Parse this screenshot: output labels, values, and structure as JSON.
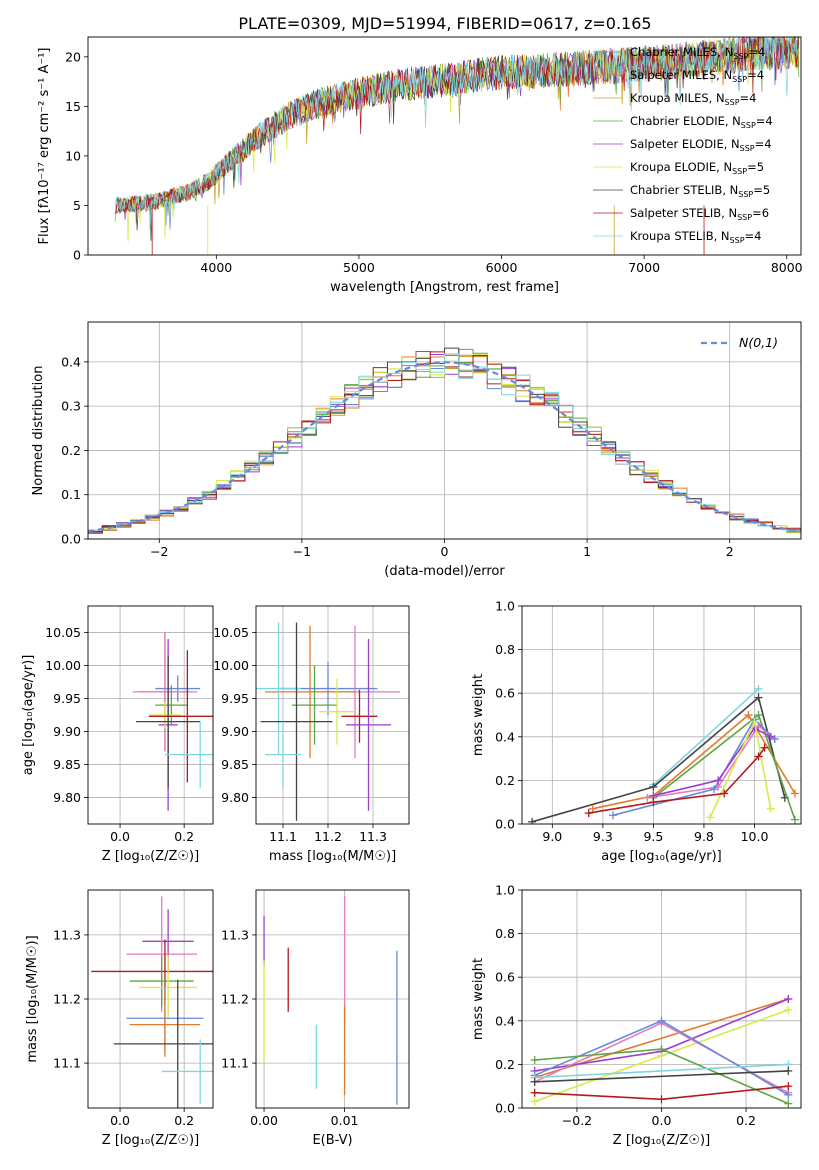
{
  "figure": {
    "title": "PLATE=0309, MJD=51994, FIBERID=0617, z=0.165"
  },
  "colors": {
    "c1": "#6688dd",
    "c2": "#e07b2a",
    "c3": "#c9a227",
    "c4": "#5ca646",
    "c5": "#9b3fd1",
    "c6": "#d6ea4a",
    "c7": "#444444",
    "c8": "#b31b1b",
    "c9": "#7fd6e0",
    "c10": "#e37bbd"
  },
  "chart_data": [
    {
      "id": "spectrum",
      "type": "line",
      "xlabel": "wavelength [Angstrom, rest frame]",
      "ylabel": "Flux [fλ10⁻¹⁷ erg cm⁻² s⁻¹ A⁻¹]",
      "xlim": [
        3100,
        8100
      ],
      "ylim": [
        0,
        22
      ],
      "xticks": [
        4000,
        5000,
        6000,
        7000,
        8000
      ],
      "yticks": [
        0,
        5,
        10,
        15,
        20
      ],
      "grid": false,
      "legend_position": "top-right",
      "x": [
        3300,
        3450,
        3600,
        3800,
        3950,
        4100,
        4300,
        4500,
        4700,
        4900,
        5100,
        5300,
        5500,
        5700,
        5900,
        6100,
        6300,
        6500,
        6700,
        6900,
        7100,
        7300,
        7500,
        7700,
        7900
      ],
      "series": [
        {
          "name": "Chabrier MILES, N_SSP=4",
          "color_key": "c1",
          "values": [
            5,
            5.2,
            5.5,
            6.3,
            7.5,
            9.5,
            12.0,
            14.0,
            15.2,
            16.0,
            16.6,
            17.2,
            17.5,
            17.8,
            18.3,
            18.5,
            18.6,
            18.8,
            19.0,
            19.2,
            19.4,
            19.7,
            20.0,
            20.3,
            20.6
          ]
        },
        {
          "name": "Salpeter MILES, N_SSP=4",
          "color_key": "c2",
          "values": [
            5,
            5.2,
            5.5,
            6.3,
            7.5,
            9.5,
            12.0,
            14.0,
            15.2,
            16.0,
            16.6,
            17.2,
            17.5,
            17.8,
            18.3,
            18.5,
            18.6,
            18.8,
            19.0,
            19.2,
            19.4,
            19.7,
            20.0,
            20.3,
            20.6
          ]
        },
        {
          "name": "Kroupa MILES, N_SSP=4",
          "color_key": "c3",
          "values": [
            5,
            5.2,
            5.5,
            6.3,
            7.5,
            9.5,
            12.0,
            14.0,
            15.2,
            16.0,
            16.6,
            17.2,
            17.5,
            17.8,
            18.3,
            18.5,
            18.6,
            18.8,
            19.0,
            19.2,
            19.4,
            19.7,
            20.0,
            20.3,
            20.6
          ]
        },
        {
          "name": "Chabrier ELODIE, N_SSP=4",
          "color_key": "c4",
          "values": [
            5,
            5.2,
            5.5,
            6.3,
            7.5,
            9.5,
            12.0,
            14.0,
            15.2,
            16.0,
            16.6,
            17.2,
            17.5,
            17.8,
            18.3,
            18.5,
            18.6,
            18.8,
            19.0,
            19.2,
            19.4,
            19.7,
            20.0,
            20.3,
            20.6
          ]
        },
        {
          "name": "Salpeter ELODIE, N_SSP=4",
          "color_key": "c5",
          "values": [
            5,
            5.2,
            5.5,
            6.3,
            7.5,
            9.5,
            12.0,
            14.0,
            15.2,
            16.0,
            16.6,
            17.2,
            17.5,
            17.8,
            18.3,
            18.5,
            18.6,
            18.8,
            19.0,
            19.2,
            19.4,
            19.7,
            20.0,
            20.3,
            20.6
          ]
        },
        {
          "name": "Kroupa ELODIE, N_SSP=5",
          "color_key": "c6",
          "values": [
            5,
            5.2,
            5.5,
            6.3,
            7.5,
            9.5,
            12.0,
            14.0,
            15.2,
            16.0,
            16.6,
            17.2,
            17.5,
            17.8,
            18.3,
            18.5,
            18.6,
            18.8,
            19.0,
            19.2,
            19.4,
            19.7,
            20.0,
            20.3,
            20.6
          ]
        },
        {
          "name": "Chabrier STELIB, N_SSP=5",
          "color_key": "c7",
          "values": [
            5,
            5.2,
            5.5,
            6.3,
            7.5,
            9.5,
            12.0,
            14.0,
            15.2,
            16.0,
            16.6,
            17.2,
            17.5,
            17.8,
            18.3,
            18.5,
            18.6,
            18.8,
            19.0,
            19.2,
            19.4,
            19.7,
            20.0,
            20.3,
            20.6
          ]
        },
        {
          "name": "Salpeter STELIB, N_SSP=6",
          "color_key": "c8",
          "values": [
            5,
            5.2,
            5.5,
            6.3,
            7.5,
            9.5,
            12.0,
            14.0,
            15.2,
            16.0,
            16.6,
            17.2,
            17.5,
            17.8,
            18.3,
            18.5,
            18.6,
            18.8,
            19.0,
            19.2,
            19.4,
            19.7,
            20.0,
            20.3,
            20.6
          ]
        },
        {
          "name": "Kroupa STELIB, N_SSP=4",
          "color_key": "c9",
          "values": [
            5,
            5.2,
            5.5,
            6.3,
            7.5,
            9.5,
            12.0,
            14.0,
            15.2,
            16.0,
            16.6,
            17.2,
            17.5,
            17.8,
            18.3,
            18.5,
            18.6,
            18.8,
            19.0,
            19.2,
            19.4,
            19.7,
            20.0,
            20.3,
            20.6
          ]
        }
      ]
    },
    {
      "id": "residuals",
      "type": "bar",
      "xlabel": "(data-model)/error",
      "ylabel": "Normed distribution",
      "xlim": [
        -2.5,
        2.5
      ],
      "ylim": [
        0,
        0.49
      ],
      "xticks": [
        -2,
        -1,
        0,
        1,
        2
      ],
      "yticks": [
        0.0,
        0.1,
        0.2,
        0.3,
        0.4
      ],
      "grid": true,
      "legend_position": "top-right",
      "reference_curve": {
        "name": "N(0,1)",
        "color_key": "c1",
        "style": "dashed"
      },
      "bin_edges": [
        -2.5,
        -2.4,
        -2.3,
        -2.2,
        -2.1,
        -2.0,
        -1.9,
        -1.8,
        -1.7,
        -1.6,
        -1.5,
        -1.4,
        -1.3,
        -1.2,
        -1.1,
        -1.0,
        -0.9,
        -0.8,
        -0.7,
        -0.6,
        -0.5,
        -0.4,
        -0.3,
        -0.2,
        -0.1,
        0.0,
        0.1,
        0.2,
        0.3,
        0.4,
        0.5,
        0.6,
        0.7,
        0.8,
        0.9,
        1.0,
        1.1,
        1.2,
        1.3,
        1.4,
        1.5,
        1.6,
        1.7,
        1.8,
        1.9,
        2.0,
        2.1,
        2.2,
        2.3,
        2.4,
        2.5
      ],
      "series_color_keys": [
        "c1",
        "c2",
        "c3",
        "c4",
        "c5",
        "c6",
        "c7",
        "c8",
        "c9"
      ]
    },
    {
      "id": "age_vs_Z",
      "type": "scatter",
      "xlabel": "Z [log₁₀(Z/Z☉)]",
      "ylabel": "age  [log₁₀(age/yr)]",
      "xlim": [
        -0.1,
        0.29
      ],
      "ylim": [
        9.76,
        10.09
      ],
      "xticks": [
        0.0,
        0.2
      ],
      "yticks": [
        9.8,
        9.85,
        9.9,
        9.95,
        10.0,
        10.05
      ],
      "grid": true,
      "points": [
        {
          "color_key": "c1",
          "x": 0.18,
          "y": 9.965,
          "xerr": 0.07,
          "yerr": 0.02
        },
        {
          "color_key": "c2",
          "x": 0.14,
          "y": 9.96,
          "xerr": 0.08,
          "yerr": 0.09
        },
        {
          "color_key": "c10",
          "x": 0.14,
          "y": 9.96,
          "xerr": 0.1,
          "yerr": 0.09
        },
        {
          "color_key": "c4",
          "x": 0.16,
          "y": 9.94,
          "xerr": 0.05,
          "yerr": 0.03
        },
        {
          "color_key": "c5",
          "x": 0.15,
          "y": 9.91,
          "xerr": 0.03,
          "yerr": 0.13
        },
        {
          "color_key": "c6",
          "x": 0.14,
          "y": 9.925,
          "xerr": 0.05,
          "yerr": 0.02
        },
        {
          "color_key": "c8",
          "x": 0.21,
          "y": 9.923,
          "xerr": 0.12,
          "yerr": 0.1
        },
        {
          "color_key": "c7",
          "x": 0.15,
          "y": 9.915,
          "xerr": 0.1,
          "yerr": 0.1
        },
        {
          "color_key": "c9",
          "x": 0.25,
          "y": 9.865,
          "xerr": 0.11,
          "yerr": 0.05
        }
      ]
    },
    {
      "id": "age_vs_mass",
      "type": "scatter",
      "xlabel": "mass [log₁₀(M/M☉)]",
      "ylabel": "",
      "xlim": [
        11.04,
        11.38
      ],
      "ylim": [
        9.76,
        10.09
      ],
      "xticks": [
        11.1,
        11.2,
        11.3
      ],
      "yticks": [
        9.8,
        9.85,
        9.9,
        9.95,
        10.0,
        10.05
      ],
      "grid": true,
      "points": [
        {
          "color_key": "c1",
          "x": 11.2,
          "y": 9.965,
          "xerr": 0.11,
          "yerr": 0.04
        },
        {
          "color_key": "c10",
          "x": 11.26,
          "y": 9.96,
          "xerr": 0.1,
          "yerr": 0.1
        },
        {
          "color_key": "c2",
          "x": 11.16,
          "y": 9.96,
          "xerr": 0.1,
          "yerr": 0.1
        },
        {
          "color_key": "c9",
          "x": 11.09,
          "y": 9.965,
          "xerr": 0.05,
          "yerr": 0.1
        },
        {
          "color_key": "c4",
          "x": 11.17,
          "y": 9.94,
          "xerr": 0.05,
          "yerr": 0.06
        },
        {
          "color_key": "c6",
          "x": 11.22,
          "y": 9.93,
          "xerr": 0.04,
          "yerr": 0.05
        },
        {
          "color_key": "c8",
          "x": 11.27,
          "y": 9.923,
          "xerr": 0.04,
          "yerr": 0.04
        },
        {
          "color_key": "c5",
          "x": 11.29,
          "y": 9.91,
          "xerr": 0.05,
          "yerr": 0.13
        },
        {
          "color_key": "c7",
          "x": 11.13,
          "y": 9.915,
          "xerr": 0.08,
          "yerr": 0.15
        },
        {
          "color_key": "c9",
          "x": 11.1,
          "y": 9.865,
          "xerr": 0.04,
          "yerr": 0.05
        }
      ]
    },
    {
      "id": "massweight_vs_age",
      "type": "line",
      "xlabel": "age  [log₁₀(age/yr)]",
      "ylabel": "mass weight",
      "xlim": [
        8.85,
        10.23
      ],
      "ylim": [
        0,
        1.0
      ],
      "xticks": [
        9.0,
        9.25,
        9.5,
        9.75,
        10.0
      ],
      "yticks": [
        0.0,
        0.2,
        0.4,
        0.6,
        0.8,
        1.0
      ],
      "grid": true,
      "series": [
        {
          "color_key": "c9",
          "x": [
            9.5,
            10.02
          ],
          "values": [
            0.18,
            0.62
          ]
        },
        {
          "color_key": "c7",
          "x": [
            8.9,
            9.5,
            10.02,
            10.15
          ],
          "values": [
            0.01,
            0.17,
            0.58,
            0.12
          ]
        },
        {
          "color_key": "c2",
          "x": [
            9.2,
            9.5,
            9.97,
            10.2
          ],
          "values": [
            0.07,
            0.13,
            0.5,
            0.14
          ]
        },
        {
          "color_key": "c4",
          "x": [
            9.5,
            10.02,
            10.2
          ],
          "values": [
            0.12,
            0.5,
            0.02
          ]
        },
        {
          "color_key": "c10",
          "x": [
            9.47,
            9.82,
            10.02,
            10.1
          ],
          "values": [
            0.12,
            0.17,
            0.45,
            0.39
          ]
        },
        {
          "color_key": "c1",
          "x": [
            9.3,
            9.8,
            10.0,
            10.1
          ],
          "values": [
            0.04,
            0.16,
            0.48,
            0.39
          ]
        },
        {
          "color_key": "c5",
          "x": [
            9.5,
            9.82,
            10.0,
            10.08
          ],
          "values": [
            0.13,
            0.2,
            0.44,
            0.4
          ]
        },
        {
          "color_key": "c6",
          "x": [
            9.78,
            10.0,
            10.08
          ],
          "values": [
            0.03,
            0.47,
            0.07
          ]
        },
        {
          "color_key": "c8",
          "x": [
            9.18,
            9.5,
            9.85,
            10.02,
            10.05
          ],
          "values": [
            0.05,
            0.1,
            0.14,
            0.31,
            0.35
          ]
        }
      ]
    },
    {
      "id": "mass_vs_Z",
      "type": "scatter",
      "xlabel": "Z [log₁₀(Z/Z☉)]",
      "ylabel": "mass [log₁₀(M/M☉)]",
      "xlim": [
        -0.1,
        0.29
      ],
      "ylim": [
        11.03,
        11.37
      ],
      "xticks": [
        0.0,
        0.2
      ],
      "yticks": [
        11.1,
        11.2,
        11.3
      ],
      "grid": true,
      "points": [
        {
          "color_key": "c5",
          "x": 0.15,
          "y": 11.29,
          "xerr": 0.08,
          "yerr": 0.05
        },
        {
          "color_key": "c10",
          "x": 0.13,
          "y": 11.27,
          "xerr": 0.11,
          "yerr": 0.09
        },
        {
          "color_key": "c8",
          "x": 0.14,
          "y": 11.243,
          "xerr": 0.23,
          "yerr": 0.05
        },
        {
          "color_key": "c4",
          "x": 0.13,
          "y": 11.228,
          "xerr": 0.1,
          "yerr": 0.04
        },
        {
          "color_key": "c6",
          "x": 0.15,
          "y": 11.218,
          "xerr": 0.09,
          "yerr": 0.05
        },
        {
          "color_key": "c1",
          "x": 0.14,
          "y": 11.17,
          "xerr": 0.12,
          "yerr": 0.05
        },
        {
          "color_key": "c2",
          "x": 0.14,
          "y": 11.16,
          "xerr": 0.11,
          "yerr": 0.05
        },
        {
          "color_key": "c7",
          "x": 0.18,
          "y": 11.13,
          "xerr": 0.2,
          "yerr": 0.1
        },
        {
          "color_key": "c9",
          "x": 0.25,
          "y": 11.087,
          "xerr": 0.12,
          "yerr": 0.05
        }
      ]
    },
    {
      "id": "mass_vs_EBV",
      "type": "scatter",
      "xlabel": "E(B-V)",
      "ylabel": "",
      "xlim": [
        -0.001,
        0.018
      ],
      "ylim": [
        11.03,
        11.37
      ],
      "xticks": [
        0.0,
        0.01
      ],
      "yticks": [
        11.1,
        11.2,
        11.3
      ],
      "grid": true,
      "points": [
        {
          "color_key": "c5",
          "x": 0.0,
          "y": 11.29,
          "xerr": 0,
          "yerr": 0.04
        },
        {
          "color_key": "c6",
          "x": 0.0,
          "y": 11.18,
          "xerr": 0,
          "yerr": 0.08
        },
        {
          "color_key": "c8",
          "x": 0.003,
          "y": 11.23,
          "xerr": 0,
          "yerr": 0.05
        },
        {
          "color_key": "c10",
          "x": 0.01,
          "y": 11.26,
          "xerr": 0,
          "yerr": 0.1
        },
        {
          "color_key": "c2",
          "x": 0.01,
          "y": 11.12,
          "xerr": 0,
          "yerr": 0.07
        },
        {
          "color_key": "c9",
          "x": 0.0065,
          "y": 11.11,
          "xerr": 0,
          "yerr": 0.05
        },
        {
          "color_key": "c1",
          "x": 0.0165,
          "y": 11.155,
          "xerr": 0,
          "yerr": 0.12
        }
      ]
    },
    {
      "id": "massweight_vs_Z",
      "type": "line",
      "xlabel": "Z [log₁₀(Z/Z☉)]",
      "ylabel": "mass weight",
      "xlim": [
        -0.33,
        0.33
      ],
      "ylim": [
        0,
        1.0
      ],
      "xticks": [
        -0.2,
        0.0,
        0.2
      ],
      "yticks": [
        0.0,
        0.2,
        0.4,
        0.6,
        0.8,
        1.0
      ],
      "grid": true,
      "series": [
        {
          "color_key": "c2",
          "x": [
            -0.3,
            0.3
          ],
          "values": [
            0.14,
            0.5
          ]
        },
        {
          "color_key": "c5",
          "x": [
            -0.3,
            0.0,
            0.3
          ],
          "values": [
            0.17,
            0.26,
            0.5
          ]
        },
        {
          "color_key": "c6",
          "x": [
            -0.3,
            0.0,
            0.3
          ],
          "values": [
            0.03,
            0.24,
            0.45
          ]
        },
        {
          "color_key": "c10",
          "x": [
            -0.3,
            0.0,
            0.3
          ],
          "values": [
            0.12,
            0.39,
            0.07
          ]
        },
        {
          "color_key": "c1",
          "x": [
            -0.3,
            0.0,
            0.3
          ],
          "values": [
            0.15,
            0.4,
            0.06
          ]
        },
        {
          "color_key": "c4",
          "x": [
            -0.3,
            0.0,
            0.3
          ],
          "values": [
            0.22,
            0.27,
            0.02
          ]
        },
        {
          "color_key": "c9",
          "x": [
            -0.3,
            0.3
          ],
          "values": [
            0.14,
            0.2
          ]
        },
        {
          "color_key": "c7",
          "x": [
            -0.3,
            0.3
          ],
          "values": [
            0.12,
            0.17
          ]
        },
        {
          "color_key": "c8",
          "x": [
            -0.3,
            0.0,
            0.3
          ],
          "values": [
            0.07,
            0.04,
            0.1
          ]
        }
      ]
    }
  ]
}
